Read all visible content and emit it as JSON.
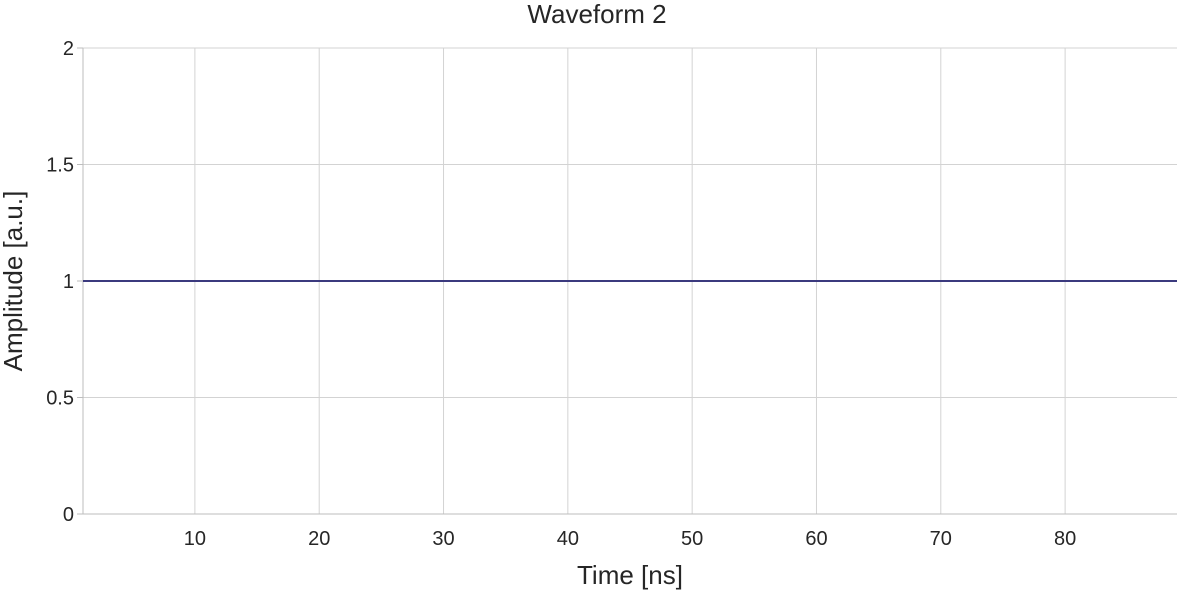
{
  "chart_data": {
    "type": "line",
    "title": "Waveform 2",
    "xlabel": "Time [ns]",
    "ylabel": "Amplitude [a.u.]",
    "xlim": [
      1,
      89
    ],
    "ylim": [
      0,
      2
    ],
    "xticks": [
      10,
      20,
      30,
      40,
      50,
      60,
      70,
      80
    ],
    "xtick_labels": [
      "10",
      "20",
      "30",
      "40",
      "50",
      "60",
      "70",
      "80"
    ],
    "yticks": [
      0,
      0.5,
      1,
      1.5,
      2
    ],
    "ytick_labels": [
      "0",
      "0.5",
      "1",
      "1.5",
      "2"
    ],
    "grid": true,
    "series": [
      {
        "color": "#3b3a7e",
        "x": [
          1,
          10,
          20,
          30,
          40,
          50,
          60,
          70,
          80,
          89
        ],
        "y": [
          1,
          1,
          1,
          1,
          1,
          1,
          1,
          1,
          1,
          1
        ]
      }
    ]
  }
}
